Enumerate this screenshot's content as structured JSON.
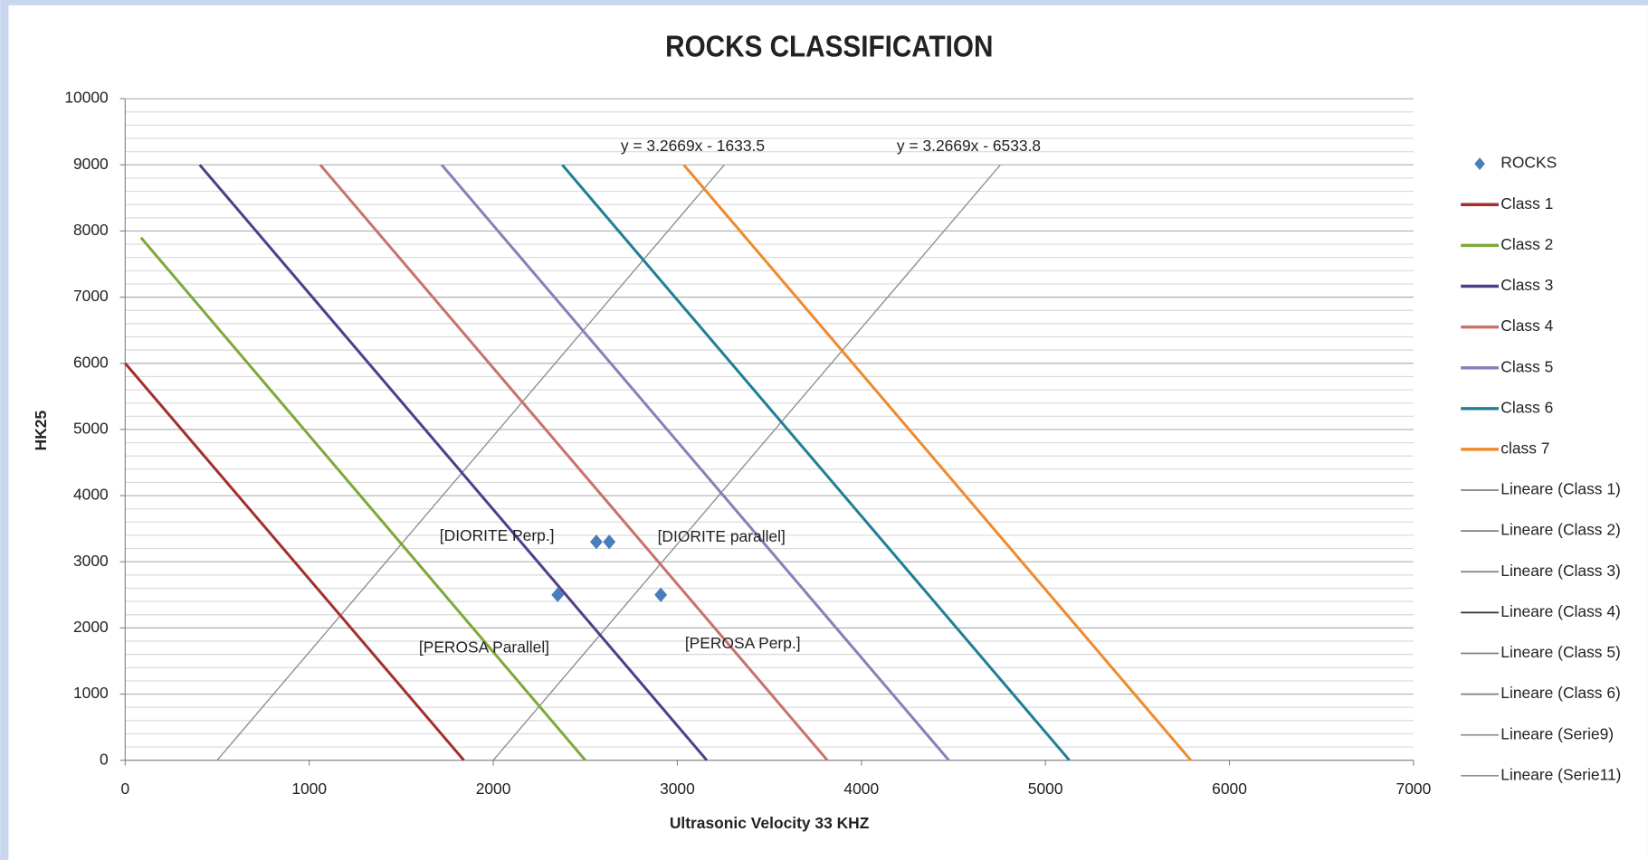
{
  "chart_data": {
    "type": "scatter",
    "title": "ROCKS CLASSIFICATION",
    "x_label": "Ultrasonic Velocity 33 KHZ",
    "y_label": "HK25",
    "xlim": [
      0,
      7000
    ],
    "xticks": [
      0,
      1000,
      2000,
      3000,
      4000,
      5000,
      6000,
      7000
    ],
    "ylim": [
      0,
      10000
    ],
    "yticks": [
      0,
      1000,
      2000,
      3000,
      4000,
      5000,
      6000,
      7000,
      8000,
      9000,
      10000
    ],
    "yminorticks": [
      200,
      400,
      600,
      800,
      1200,
      1400,
      1600,
      1800,
      2200,
      2400,
      2600,
      2800,
      3200,
      3400,
      3600,
      3800,
      4200,
      4400,
      4600,
      4800,
      5200,
      5400,
      5600,
      5800,
      6200,
      6400,
      6600,
      6800,
      7200,
      7400,
      7600,
      7800,
      8200,
      8400,
      8600,
      8800,
      9200,
      9400,
      9600,
      9800
    ],
    "grid": true,
    "legend": "right",
    "series": [
      {
        "name": "ROCKS",
        "type": "scatter",
        "color": "#4a7ebb",
        "x": [
          2560,
          2630,
          2350,
          2910
        ],
        "values": [
          3300,
          3300,
          2500,
          2500
        ],
        "labels": [
          "[DIORITE Perp.]",
          "[DIORITE parallel]",
          "[PEROSA Parallel]",
          "[PEROSA Perp.]"
        ]
      },
      {
        "name": "Class 1",
        "type": "line",
        "color": "#a2302c",
        "x": [
          0,
          1840
        ],
        "values": [
          6000,
          0
        ]
      },
      {
        "name": "Class 2",
        "type": "line",
        "color": "#7fa83a",
        "x": [
          86,
          2500
        ],
        "values": [
          7900,
          0
        ]
      },
      {
        "name": "Class 3",
        "type": "line",
        "color": "#4f3f8a",
        "x": [
          405,
          3160
        ],
        "values": [
          9000,
          0
        ]
      },
      {
        "name": "Class 4",
        "type": "line",
        "color": "#c8726e",
        "x": [
          1060,
          3815
        ],
        "values": [
          9000,
          0
        ]
      },
      {
        "name": "Class 5",
        "type": "line",
        "color": "#8a7fb8",
        "x": [
          1720,
          4475
        ],
        "values": [
          9000,
          0
        ]
      },
      {
        "name": "Class 6",
        "type": "line",
        "color": "#1f7f96",
        "x": [
          2375,
          5130
        ],
        "values": [
          9000,
          0
        ]
      },
      {
        "name": "class 7",
        "type": "line",
        "color": "#ef8a2e",
        "x": [
          3035,
          5790
        ],
        "values": [
          9000,
          0
        ]
      },
      {
        "name": "Lineare (Class 1)",
        "type": "trendline",
        "color": "#808080",
        "x": [
          0,
          1840
        ],
        "values": [
          6000,
          0
        ]
      },
      {
        "name": "Lineare (Class 2)",
        "type": "trendline",
        "color": "#808080",
        "x": [
          86,
          2500
        ],
        "values": [
          7900,
          0
        ]
      },
      {
        "name": "Lineare (Class 3)",
        "type": "trendline",
        "color": "#808080",
        "x": [
          405,
          3160
        ],
        "values": [
          9000,
          0
        ]
      },
      {
        "name": "Lineare (Class 4)",
        "type": "trendline",
        "color": "#303030",
        "x": [
          1060,
          3815
        ],
        "values": [
          9000,
          0
        ]
      },
      {
        "name": "Lineare (Class 5)",
        "type": "trendline",
        "color": "#808080",
        "x": [
          1720,
          4475
        ],
        "values": [
          9000,
          0
        ]
      },
      {
        "name": "Lineare (Class 6)",
        "type": "trendline",
        "color": "#808080",
        "x": [
          2375,
          5130
        ],
        "values": [
          9000,
          0
        ]
      },
      {
        "name": "Lineare (Serie9)",
        "type": "trendline",
        "color": "#909090",
        "x": [
          500,
          3255
        ],
        "values": [
          0,
          9000
        ],
        "equation": "y = 3.2669x - 1633.5"
      },
      {
        "name": "Lineare (Serie11)",
        "type": "trendline",
        "color": "#909090",
        "x": [
          2000,
          4755
        ],
        "values": [
          0,
          9000
        ],
        "equation": "y = 3.2669x - 6533.8"
      }
    ]
  }
}
